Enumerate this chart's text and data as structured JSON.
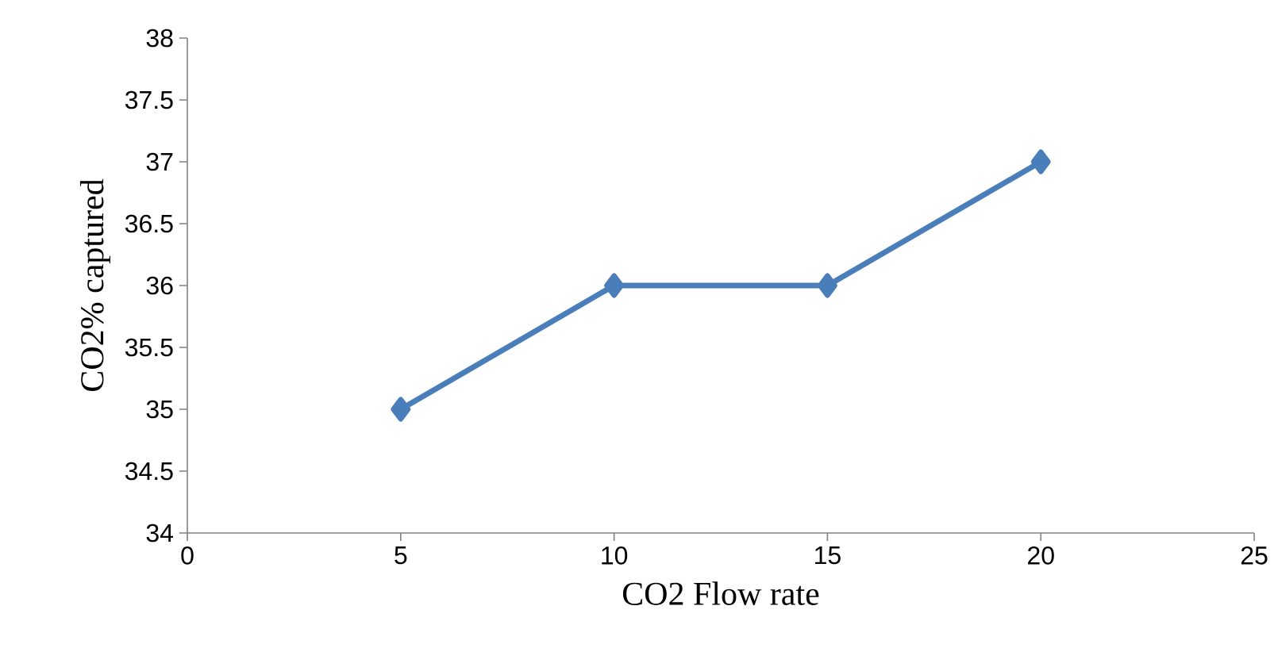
{
  "chart_data": {
    "type": "line",
    "xlabel": "CO2 Flow rate",
    "ylabel": "CO2% captured",
    "x": [
      5,
      10,
      15,
      20
    ],
    "series": [
      {
        "color": "#4a7ebb",
        "values": [
          35,
          36,
          36,
          37
        ]
      }
    ],
    "xlim": [
      0,
      25
    ],
    "xticks": [
      0,
      5,
      10,
      15,
      20,
      25
    ],
    "ylim": [
      34,
      38
    ],
    "yticks": [
      34,
      34.5,
      35,
      35.5,
      36,
      36.5,
      37,
      37.5,
      38
    ],
    "grid": false,
    "marker": "diamond",
    "line_style": "solid"
  }
}
